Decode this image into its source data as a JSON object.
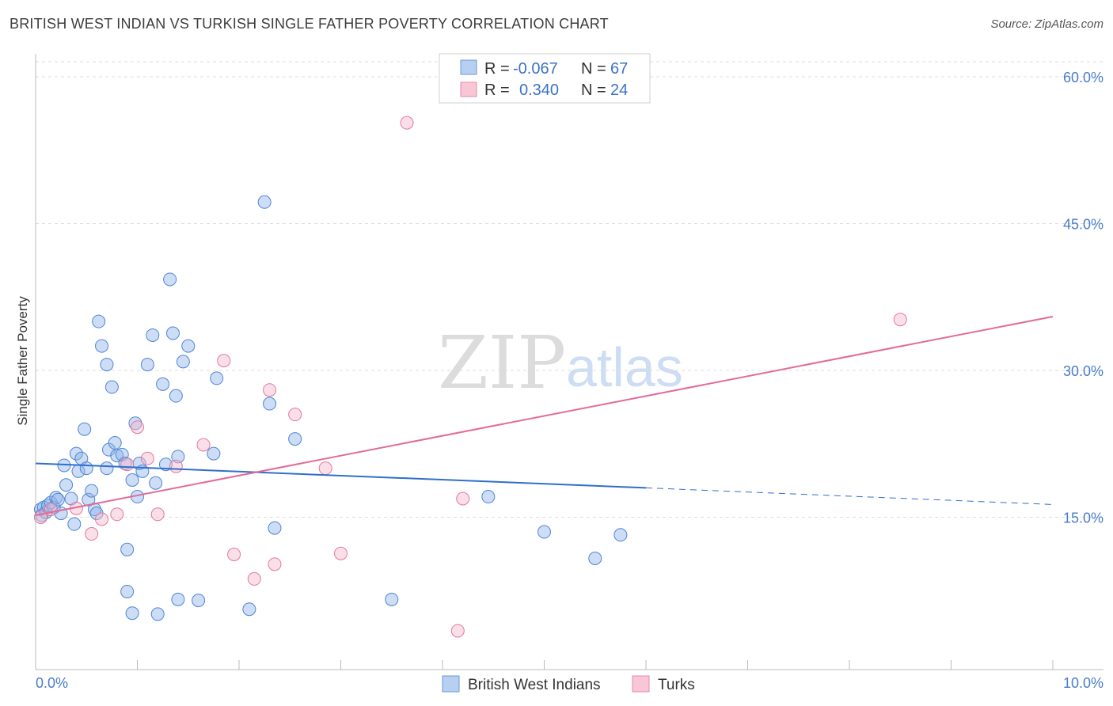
{
  "header": {
    "title": "BRITISH WEST INDIAN VS TURKISH SINGLE FATHER POVERTY CORRELATION CHART",
    "source": "Source: ZipAtlas.com"
  },
  "watermark": {
    "zip": "ZIP",
    "atlas": "atlas"
  },
  "chart_data": {
    "type": "scatter",
    "title": "BRITISH WEST INDIAN VS TURKISH SINGLE FATHER POVERTY CORRELATION CHART",
    "xlabel": "",
    "ylabel": "Single Father Poverty",
    "xlim": [
      0,
      10
    ],
    "ylim": [
      0,
      60
    ],
    "x_tick_labels": {
      "left": "0.0%",
      "right": "10.0%"
    },
    "y_ticks": [
      {
        "value": 15,
        "label": "15.0%"
      },
      {
        "value": 30,
        "label": "30.0%"
      },
      {
        "value": 45,
        "label": "45.0%"
      },
      {
        "value": 60,
        "label": "60.0%"
      }
    ],
    "stats_legend": [
      {
        "r_label": "R =",
        "r_value": "-0.067",
        "n_label": "N =",
        "n_value": "67"
      },
      {
        "r_label": "R =",
        "r_value": "0.340",
        "n_label": "N =",
        "n_value": "24"
      }
    ],
    "series": [
      {
        "name": "British West Indians",
        "color": "#8db4e8",
        "stroke": "#4f86d4",
        "trend": {
          "x0": 0.0,
          "y0": 20.5,
          "x1": 6.0,
          "y1": 18.0,
          "x_end_dashed": 10.0,
          "y_end_dashed": 16.3,
          "color": "#2f6fcc"
        },
        "points": [
          [
            0.05,
            15.8
          ],
          [
            0.06,
            15.2
          ],
          [
            0.08,
            16.0
          ],
          [
            0.1,
            15.5
          ],
          [
            0.12,
            16.2
          ],
          [
            0.15,
            16.5
          ],
          [
            0.18,
            16.0
          ],
          [
            0.2,
            17.0
          ],
          [
            0.22,
            16.8
          ],
          [
            0.25,
            15.4
          ],
          [
            0.28,
            20.3
          ],
          [
            0.3,
            18.3
          ],
          [
            0.35,
            16.9
          ],
          [
            0.38,
            14.3
          ],
          [
            0.4,
            21.5
          ],
          [
            0.42,
            19.7
          ],
          [
            0.45,
            21.0
          ],
          [
            0.48,
            24.0
          ],
          [
            0.5,
            20.0
          ],
          [
            0.52,
            16.8
          ],
          [
            0.55,
            17.7
          ],
          [
            0.58,
            15.8
          ],
          [
            0.6,
            15.4
          ],
          [
            0.62,
            35.0
          ],
          [
            0.65,
            32.5
          ],
          [
            0.7,
            30.6
          ],
          [
            0.72,
            21.9
          ],
          [
            0.75,
            28.3
          ],
          [
            0.78,
            22.6
          ],
          [
            0.8,
            21.3
          ],
          [
            0.85,
            21.4
          ],
          [
            0.88,
            20.5
          ],
          [
            0.9,
            11.7
          ],
          [
            0.95,
            18.8
          ],
          [
            0.98,
            24.6
          ],
          [
            1.0,
            17.1
          ],
          [
            1.02,
            20.5
          ],
          [
            1.05,
            19.7
          ],
          [
            1.1,
            30.6
          ],
          [
            1.15,
            33.6
          ],
          [
            1.18,
            18.5
          ],
          [
            1.2,
            5.1
          ],
          [
            1.25,
            28.6
          ],
          [
            1.28,
            20.4
          ],
          [
            1.32,
            39.3
          ],
          [
            1.35,
            33.8
          ],
          [
            1.38,
            27.4
          ],
          [
            1.4,
            21.2
          ],
          [
            1.45,
            30.9
          ],
          [
            1.5,
            32.5
          ],
          [
            1.6,
            6.5
          ],
          [
            1.75,
            21.5
          ],
          [
            1.78,
            29.2
          ],
          [
            2.1,
            5.6
          ],
          [
            2.25,
            47.2
          ],
          [
            2.35,
            13.9
          ],
          [
            2.55,
            23.0
          ],
          [
            3.5,
            6.6
          ],
          [
            4.45,
            17.1
          ],
          [
            5.0,
            13.5
          ],
          [
            5.5,
            10.8
          ],
          [
            5.75,
            13.2
          ],
          [
            0.9,
            7.4
          ],
          [
            1.4,
            6.6
          ],
          [
            0.95,
            5.2
          ],
          [
            2.3,
            26.6
          ],
          [
            0.7,
            20.0
          ]
        ]
      },
      {
        "name": "Turks",
        "color": "#f5b8cb",
        "stroke": "#e07a9c",
        "trend": {
          "x0": 0.0,
          "y0": 15.2,
          "x1": 10.0,
          "y1": 35.5,
          "color": "#e26b98"
        },
        "points": [
          [
            0.05,
            15.0
          ],
          [
            0.15,
            15.8
          ],
          [
            0.4,
            15.9
          ],
          [
            0.55,
            13.3
          ],
          [
            0.65,
            14.8
          ],
          [
            0.8,
            15.3
          ],
          [
            0.9,
            20.4
          ],
          [
            1.0,
            24.2
          ],
          [
            1.1,
            21.0
          ],
          [
            1.2,
            15.3
          ],
          [
            1.38,
            20.2
          ],
          [
            1.65,
            22.4
          ],
          [
            1.85,
            31.0
          ],
          [
            1.95,
            11.2
          ],
          [
            2.15,
            8.7
          ],
          [
            2.3,
            28.0
          ],
          [
            2.35,
            10.2
          ],
          [
            2.55,
            25.5
          ],
          [
            2.85,
            20.0
          ],
          [
            3.0,
            11.3
          ],
          [
            3.65,
            55.3
          ],
          [
            4.15,
            3.4
          ],
          [
            4.2,
            16.9
          ],
          [
            8.5,
            35.2
          ]
        ]
      }
    ]
  }
}
